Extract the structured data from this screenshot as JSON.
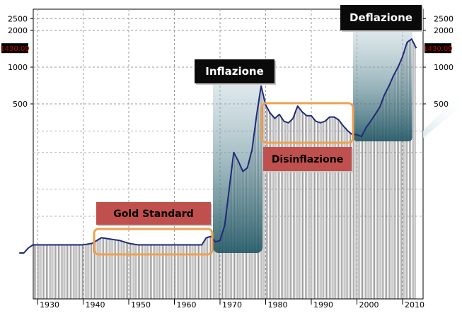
{
  "chart_data": {
    "type": "line",
    "y_scale": "log",
    "grid": true,
    "series": [
      {
        "x": [
          1926,
          1927,
          1928,
          1929,
          1930,
          1935,
          1940,
          1942,
          1944,
          1946,
          1948,
          1950,
          1952,
          1954,
          1956,
          1958,
          1960,
          1962,
          1964,
          1966,
          1967,
          1968,
          1969,
          1970,
          1971,
          1972,
          1973,
          1974,
          1975,
          1976,
          1977,
          1978,
          1979,
          1980,
          1981,
          1982,
          1983,
          1984,
          1985,
          1986,
          1987,
          1988,
          1989,
          1990,
          1991,
          1992,
          1993,
          1994,
          1995,
          1996,
          1997,
          1998,
          1999,
          2000,
          2001,
          2002,
          2003,
          2004,
          2005,
          2006,
          2007,
          2008,
          2009,
          2010,
          2011,
          2012,
          2013
        ],
        "values": [
          30,
          30,
          33,
          35,
          35,
          35,
          35,
          36,
          40,
          39,
          38,
          36,
          35,
          35,
          35,
          35,
          35,
          35,
          35,
          35,
          40,
          41,
          37,
          38,
          50,
          100,
          200,
          170,
          140,
          150,
          210,
          400,
          700,
          490,
          420,
          380,
          410,
          360,
          350,
          380,
          480,
          430,
          400,
          400,
          360,
          350,
          360,
          390,
          390,
          370,
          330,
          300,
          280,
          280,
          270,
          320,
          360,
          410,
          470,
          590,
          700,
          850,
          1000,
          1220,
          1600,
          1700,
          1430.09
        ]
      }
    ],
    "y_ticks": [
      "500",
      "1000",
      "2000",
      "2500"
    ],
    "x_ticks": [
      "1930",
      "1940",
      "1950",
      "1960",
      "1970",
      "1980",
      "1990",
      "2000",
      "2010"
    ],
    "last_value_label": "1430.09",
    "annotations": [
      "Gold Standard",
      "Inflazione",
      "Disinflazione",
      "Deflazione"
    ],
    "colors": {
      "line": "#1f2a78",
      "bars": "#8a8a8a",
      "highlight_box": "#f0a050",
      "label_dark": "#0a0a0a",
      "label_red": "#c0504d",
      "price_tag": "#c00000",
      "shading": "#2a5f6e"
    }
  }
}
